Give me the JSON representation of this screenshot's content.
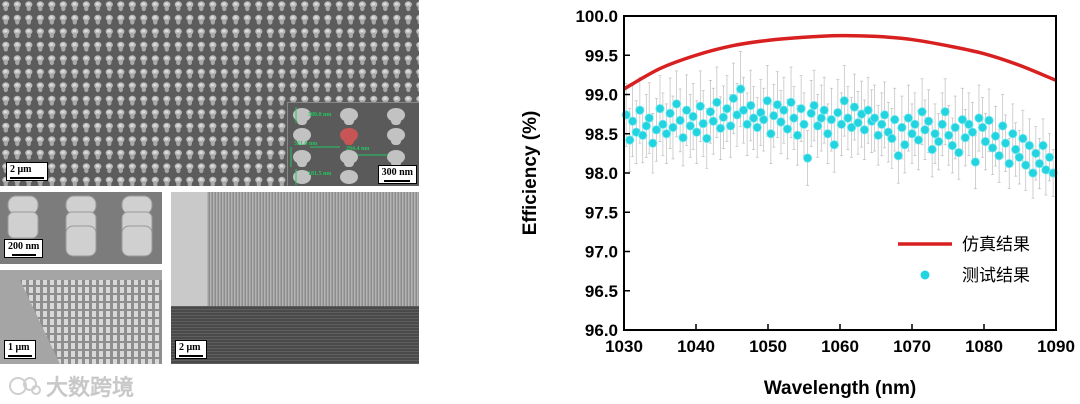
{
  "panels": {
    "top_left": {
      "scale_label": "2 μm"
    },
    "inset": {
      "scale_label": "300 nm",
      "dims": [
        "300.0 nm",
        "521.0 nm",
        "204.4 nm",
        "181.5 nm"
      ]
    },
    "mid_left": {
      "scale_label": "200 nm"
    },
    "bottom_left": {
      "scale_label": "1 μm"
    },
    "bottom_right": {
      "scale_label": "2 μm"
    }
  },
  "watermark": {
    "text": "大数跨境"
  },
  "colors": {
    "sim": "#d92020",
    "meas": "#22d3e0",
    "axis": "#000000"
  },
  "chart_data": {
    "type": "scatter",
    "xlabel": "Wavelength (nm)",
    "ylabel": "Efficiency (%)",
    "xlim": [
      1030,
      1090
    ],
    "ylim": [
      96.0,
      100.0
    ],
    "xticks": [
      1030,
      1040,
      1050,
      1060,
      1070,
      1080,
      1090
    ],
    "yticks": [
      "96.0",
      "96.5",
      "97.0",
      "97.5",
      "98.0",
      "98.5",
      "99.0",
      "99.5",
      "100.0"
    ],
    "legend_position": "bottom-right",
    "series": [
      {
        "name": "仿真结果",
        "kind": "line",
        "x": [
          1030,
          1035,
          1040,
          1045,
          1050,
          1055,
          1060,
          1065,
          1070,
          1075,
          1080,
          1085,
          1090
        ],
        "y": [
          99.07,
          99.33,
          99.5,
          99.62,
          99.69,
          99.73,
          99.75,
          99.74,
          99.7,
          99.62,
          99.52,
          99.37,
          99.18
        ]
      },
      {
        "name": "测试结果",
        "kind": "scatter_errorbar",
        "x": [
          1030.3,
          1030.8,
          1031.2,
          1031.7,
          1032.2,
          1032.6,
          1033.1,
          1033.5,
          1034.0,
          1034.5,
          1035.0,
          1035.4,
          1035.9,
          1036.4,
          1036.8,
          1037.3,
          1037.8,
          1038.2,
          1038.7,
          1039.2,
          1039.6,
          1040.1,
          1040.6,
          1041.0,
          1041.5,
          1042.0,
          1042.4,
          1042.9,
          1043.4,
          1043.8,
          1044.3,
          1044.8,
          1045.2,
          1045.7,
          1046.2,
          1046.6,
          1047.1,
          1047.6,
          1048.0,
          1048.5,
          1049.0,
          1049.4,
          1049.9,
          1050.4,
          1050.8,
          1051.3,
          1051.8,
          1052.2,
          1052.7,
          1053.2,
          1053.6,
          1054.1,
          1054.6,
          1055.0,
          1055.5,
          1056.0,
          1056.4,
          1056.9,
          1057.4,
          1057.8,
          1058.3,
          1058.8,
          1059.2,
          1059.7,
          1060.2,
          1060.6,
          1061.1,
          1061.6,
          1062.0,
          1062.5,
          1063.0,
          1063.4,
          1063.9,
          1064.4,
          1064.8,
          1065.3,
          1065.8,
          1066.2,
          1066.7,
          1067.2,
          1067.6,
          1068.1,
          1068.6,
          1069.0,
          1069.5,
          1070.0,
          1070.4,
          1070.9,
          1071.4,
          1071.8,
          1072.3,
          1072.8,
          1073.2,
          1073.7,
          1074.2,
          1074.6,
          1075.1,
          1075.6,
          1076.0,
          1076.5,
          1077.0,
          1077.4,
          1077.9,
          1078.4,
          1078.8,
          1079.3,
          1079.8,
          1080.2,
          1080.7,
          1081.2,
          1081.6,
          1082.1,
          1082.6,
          1083.0,
          1083.5,
          1084.0,
          1084.4,
          1084.9,
          1085.4,
          1085.8,
          1086.3,
          1086.8,
          1087.2,
          1087.7,
          1088.2,
          1088.6,
          1089.1,
          1089.6
        ],
        "y": [
          98.74,
          98.42,
          98.66,
          98.52,
          98.8,
          98.48,
          98.6,
          98.7,
          98.38,
          98.55,
          98.82,
          98.62,
          98.5,
          98.76,
          98.58,
          98.88,
          98.67,
          98.45,
          98.8,
          98.6,
          98.72,
          98.52,
          98.85,
          98.63,
          98.44,
          98.78,
          98.66,
          98.9,
          98.57,
          98.71,
          98.82,
          98.6,
          98.95,
          98.74,
          99.07,
          98.8,
          98.62,
          98.86,
          98.7,
          98.58,
          98.77,
          98.68,
          98.92,
          98.5,
          98.73,
          98.87,
          98.65,
          98.8,
          98.56,
          98.9,
          98.7,
          98.48,
          98.82,
          98.62,
          98.19,
          98.76,
          98.86,
          98.6,
          98.7,
          98.8,
          98.5,
          98.68,
          98.36,
          98.77,
          98.62,
          98.92,
          98.7,
          98.58,
          98.84,
          98.64,
          98.75,
          98.55,
          98.8,
          98.66,
          98.7,
          98.48,
          98.62,
          98.74,
          98.52,
          98.44,
          98.68,
          98.22,
          98.58,
          98.36,
          98.7,
          98.5,
          98.62,
          98.42,
          98.78,
          98.55,
          98.66,
          98.3,
          98.5,
          98.4,
          98.62,
          98.78,
          98.48,
          98.35,
          98.58,
          98.26,
          98.68,
          98.45,
          98.62,
          98.52,
          98.14,
          98.7,
          98.58,
          98.4,
          98.67,
          98.32,
          98.47,
          98.22,
          98.6,
          98.38,
          98.12,
          98.5,
          98.3,
          98.2,
          98.44,
          98.1,
          98.35,
          98.0,
          98.25,
          98.12,
          98.35,
          98.04,
          98.2,
          98.0
        ],
        "err": [
          0.4,
          0.4,
          0.45,
          0.4,
          0.42,
          0.35,
          0.4,
          0.45,
          0.38,
          0.4,
          0.42,
          0.4,
          0.38,
          0.45,
          0.4,
          0.42,
          0.4,
          0.36,
          0.45,
          0.4,
          0.42,
          0.4,
          0.45,
          0.42,
          0.38,
          0.4,
          0.42,
          0.45,
          0.4,
          0.4,
          0.42,
          0.4,
          0.45,
          0.4,
          0.48,
          0.42,
          0.4,
          0.45,
          0.4,
          0.38,
          0.42,
          0.4,
          0.45,
          0.38,
          0.4,
          0.42,
          0.4,
          0.42,
          0.38,
          0.45,
          0.4,
          0.38,
          0.42,
          0.4,
          0.35,
          0.42,
          0.45,
          0.4,
          0.42,
          0.42,
          0.38,
          0.4,
          0.35,
          0.42,
          0.4,
          0.45,
          0.4,
          0.38,
          0.42,
          0.4,
          0.42,
          0.38,
          0.42,
          0.4,
          0.42,
          0.38,
          0.4,
          0.42,
          0.38,
          0.38,
          0.4,
          0.35,
          0.4,
          0.36,
          0.42,
          0.38,
          0.4,
          0.38,
          0.42,
          0.38,
          0.4,
          0.35,
          0.38,
          0.36,
          0.4,
          0.42,
          0.38,
          0.35,
          0.4,
          0.34,
          0.4,
          0.36,
          0.4,
          0.38,
          0.34,
          0.42,
          0.38,
          0.36,
          0.4,
          0.34,
          0.38,
          0.34,
          0.4,
          0.36,
          0.32,
          0.38,
          0.34,
          0.34,
          0.36,
          0.32,
          0.34,
          0.32,
          0.34,
          0.32,
          0.34,
          0.32,
          0.3,
          0.3
        ]
      }
    ]
  }
}
